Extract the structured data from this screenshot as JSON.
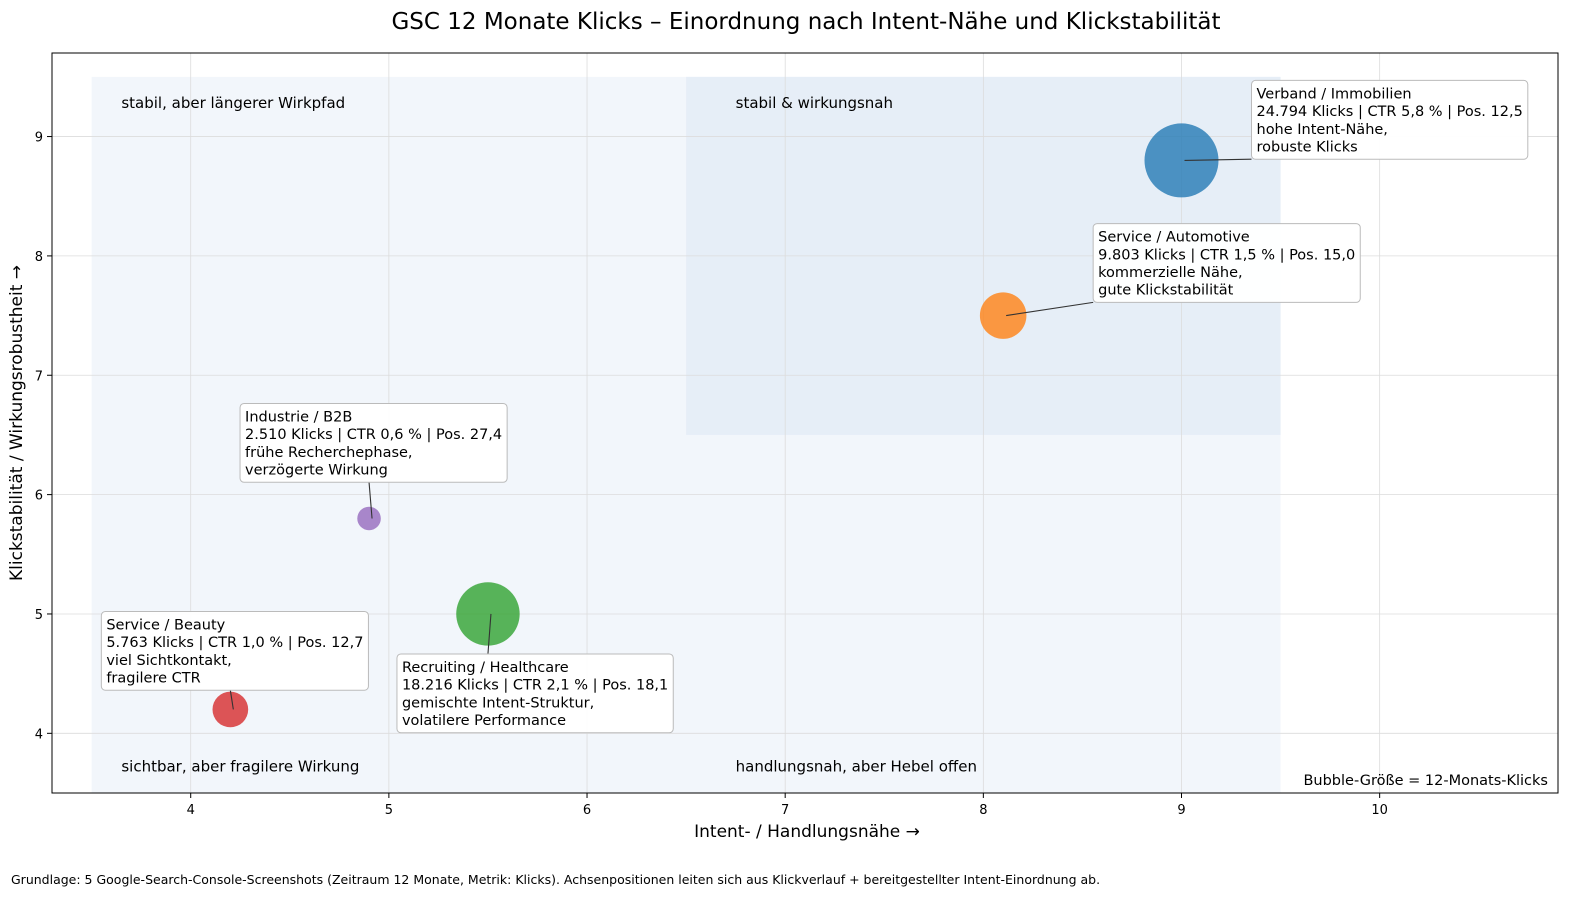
{
  "chart_data": {
    "type": "scatter",
    "title": "GSC 12 Monate Klicks – Einordnung nach Intent-Nähe und Klickstabilität",
    "xlabel": "Intent- / Handlungsnähe  →",
    "ylabel": "Klickstabilität / Wirkungsrobustheit  →",
    "xlim": [
      3.3,
      10.9
    ],
    "ylim": [
      3.5,
      9.7
    ],
    "x_ticks": [
      4,
      5,
      6,
      7,
      8,
      9,
      10
    ],
    "y_ticks": [
      4,
      5,
      6,
      7,
      8,
      9
    ],
    "grid": true,
    "regions": [
      {
        "x": [
          3.5,
          9.5
        ],
        "y": [
          3.5,
          9.5
        ],
        "color": "#f2f6fb"
      },
      {
        "x": [
          6.5,
          9.5
        ],
        "y": [
          6.5,
          9.5
        ],
        "color": "#e6eef7"
      }
    ],
    "quadrant_labels": [
      {
        "text": "stabil, aber längerer Wirkpfad",
        "x": 3.65,
        "y": 9.28
      },
      {
        "text": "stabil & wirkungsnah",
        "x": 6.75,
        "y": 9.28
      },
      {
        "text": "sichtbar, aber fragilere Wirkung",
        "x": 3.65,
        "y": 3.72
      },
      {
        "text": "handlungsnah, aber Hebel offen",
        "x": 6.75,
        "y": 3.72
      }
    ],
    "points": [
      {
        "name": "Verband / Immobilien",
        "x": 9.0,
        "y": 8.8,
        "clicks": 24794,
        "color": "#1f77b4",
        "lines": [
          "Verband / Immobilien",
          "24.794 Klicks | CTR 5,8 % | Pos. 12,5",
          "hohe Intent-Nähe,",
          "robuste Klicks"
        ]
      },
      {
        "name": "Service / Automotive",
        "x": 8.1,
        "y": 7.5,
        "clicks": 9803,
        "color": "#ff7f0e",
        "lines": [
          "Service / Automotive",
          "9.803 Klicks | CTR 1,5 % | Pos. 15,0",
          "kommerzielle Nähe,",
          "gute Klickstabilität"
        ]
      },
      {
        "name": "Industrie / B2B",
        "x": 4.9,
        "y": 5.8,
        "clicks": 2510,
        "color": "#9467bd",
        "lines": [
          "Industrie / B2B",
          "2.510 Klicks | CTR 0,6 % | Pos. 27,4",
          "frühe Recherchephase,",
          "verzögerte Wirkung"
        ]
      },
      {
        "name": "Recruiting / Healthcare",
        "x": 5.5,
        "y": 5.0,
        "clicks": 18216,
        "color": "#2ca02c",
        "lines": [
          "Recruiting / Healthcare",
          "18.216 Klicks | CTR 2,1 % | Pos. 18,1",
          "gemischte Intent-Struktur,",
          "volatilere Performance"
        ]
      },
      {
        "name": "Service / Beauty",
        "x": 4.2,
        "y": 4.2,
        "clicks": 5763,
        "color": "#d62728",
        "lines": [
          "Service / Beauty",
          "5.763 Klicks | CTR 1,0 % | Pos. 12,7",
          "viel Sichtkontakt,",
          "fragilere CTR"
        ]
      }
    ],
    "size_note": "Bubble-Größe = 12-Monats-Klicks"
  },
  "footnote": "Grundlage: 5 Google-Search-Console-Screenshots (Zeitraum 12 Monate, Metrik: Klicks). Achsenpositionen leiten sich aus Klickverlauf + bereitgestellter Intent-Einordnung ab."
}
